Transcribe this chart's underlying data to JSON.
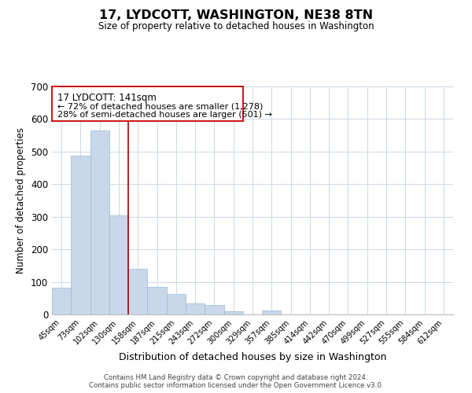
{
  "title": "17, LYDCOTT, WASHINGTON, NE38 8TN",
  "subtitle": "Size of property relative to detached houses in Washington",
  "xlabel": "Distribution of detached houses by size in Washington",
  "ylabel": "Number of detached properties",
  "bar_color": "#c8d8ea",
  "bar_edge_color": "#9ab8cc",
  "categories": [
    "45sqm",
    "73sqm",
    "102sqm",
    "130sqm",
    "158sqm",
    "187sqm",
    "215sqm",
    "243sqm",
    "272sqm",
    "300sqm",
    "329sqm",
    "357sqm",
    "385sqm",
    "414sqm",
    "442sqm",
    "470sqm",
    "499sqm",
    "527sqm",
    "555sqm",
    "584sqm",
    "612sqm"
  ],
  "values": [
    83,
    488,
    565,
    305,
    140,
    85,
    63,
    35,
    29,
    10,
    0,
    12,
    0,
    0,
    0,
    0,
    0,
    0,
    0,
    0,
    0
  ],
  "vline_position": 3.5,
  "vline_color": "#aa0000",
  "ann_line1": "17 LYDCOTT: 141sqm",
  "ann_line2": "← 72% of detached houses are smaller (1,278)",
  "ann_line3": "28% of semi-detached houses are larger (501) →",
  "ylim": [
    0,
    700
  ],
  "yticks": [
    0,
    100,
    200,
    300,
    400,
    500,
    600,
    700
  ],
  "footer_line1": "Contains HM Land Registry data © Crown copyright and database right 2024.",
  "footer_line2": "Contains public sector information licensed under the Open Government Licence v3.0.",
  "background_color": "#ffffff",
  "grid_color": "#ccd8e4"
}
